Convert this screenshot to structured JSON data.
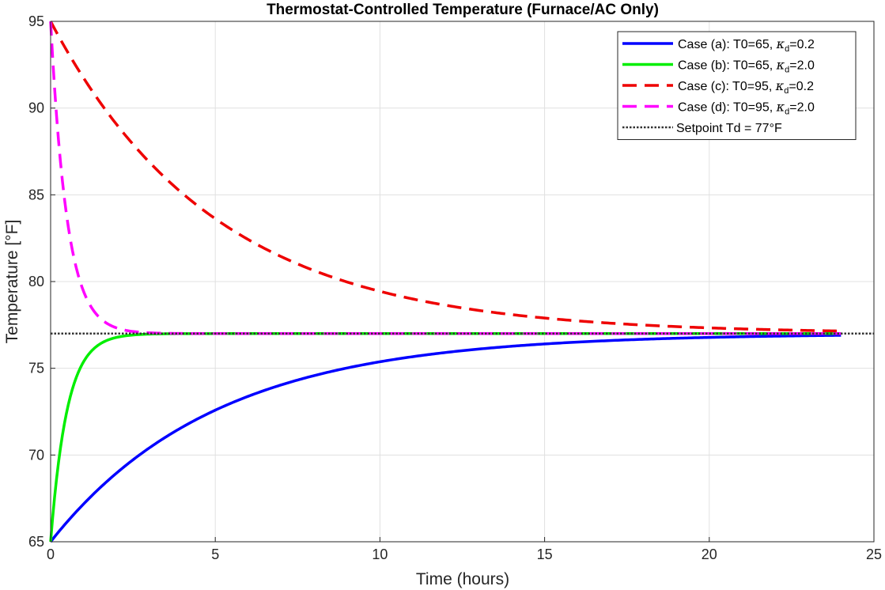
{
  "chart_data": {
    "type": "line",
    "title": "Thermostat-Controlled Temperature (Furnace/AC Only)",
    "xlabel": "Time (hours)",
    "ylabel": "Temperature [°F]",
    "xlim": [
      0,
      25
    ],
    "ylim": [
      65,
      95
    ],
    "xticks": [
      0,
      5,
      10,
      15,
      20,
      25
    ],
    "yticks": [
      65,
      70,
      75,
      80,
      85,
      90,
      95
    ],
    "grid": true,
    "legend_position": "top-right",
    "setpoint": 77,
    "t_end": 24,
    "series": [
      {
        "name": "Case  (a):  T0=65,  κd=0.2",
        "legend_prefix": "Case  (a):  T0=65,  ",
        "legend_kappa": "κ",
        "legend_sub": "d",
        "legend_suffix": "=0.2",
        "T0": 65,
        "kappa_d": 0.2,
        "color": "#0000ff",
        "dash": "solid",
        "x": [
          0,
          1,
          2,
          3,
          4,
          5,
          6,
          7,
          8,
          9,
          10,
          12,
          14,
          16,
          18,
          20,
          22,
          24
        ],
        "y": [
          65.0,
          67.18,
          68.96,
          70.41,
          71.61,
          72.58,
          73.39,
          74.04,
          74.58,
          75.02,
          75.38,
          75.91,
          76.27,
          76.51,
          76.67,
          76.78,
          76.85,
          76.9
        ]
      },
      {
        "name": "Case  (b):  T0=65,  κd=2.0",
        "legend_prefix": "Case  (b):  T0=65,  ",
        "legend_kappa": "κ",
        "legend_sub": "d",
        "legend_suffix": "=2.0",
        "T0": 65,
        "kappa_d": 2.0,
        "color": "#00ee00",
        "dash": "solid",
        "x": [
          0,
          0.1,
          0.2,
          0.3,
          0.5,
          0.75,
          1.0,
          1.5,
          2.0,
          2.5,
          3.0,
          4.0,
          6.0,
          10.0,
          16.0,
          24.0
        ],
        "y": [
          65.0,
          67.18,
          68.96,
          70.41,
          72.58,
          74.3,
          75.38,
          76.4,
          76.78,
          76.92,
          76.97,
          77.0,
          77.0,
          77.0,
          77.0,
          77.0
        ]
      },
      {
        "name": "Case  (c):  T0=95,  κd=0.2",
        "legend_prefix": "Case  (c):  T0=95,  ",
        "legend_kappa": "κ",
        "legend_sub": "d",
        "legend_suffix": "=0.2",
        "T0": 95,
        "kappa_d": 0.2,
        "color": "#ee0000",
        "dash": "dashed",
        "x": [
          0,
          1,
          2,
          3,
          4,
          5,
          6,
          7,
          8,
          9,
          10,
          12,
          14,
          16,
          18,
          20,
          22,
          24
        ],
        "y": [
          95.0,
          91.74,
          89.07,
          86.88,
          85.09,
          83.62,
          82.42,
          81.44,
          80.63,
          79.97,
          79.43,
          78.63,
          78.1,
          77.73,
          77.49,
          77.33,
          77.22,
          77.15
        ]
      },
      {
        "name": "Case  (d):  T0=95,  κd=2.0",
        "legend_prefix": "Case  (d):  T0=95,  ",
        "legend_kappa": "κ",
        "legend_sub": "d",
        "legend_suffix": "=2.0",
        "T0": 95,
        "kappa_d": 2.0,
        "color": "#ff00ff",
        "dash": "dashed",
        "x": [
          0,
          0.1,
          0.2,
          0.3,
          0.5,
          0.75,
          1.0,
          1.5,
          2.0,
          2.5,
          3.0,
          4.0,
          6.0,
          10.0,
          16.0,
          24.0
        ],
        "y": [
          95.0,
          91.74,
          89.07,
          86.88,
          83.62,
          81.04,
          79.43,
          77.9,
          77.33,
          77.12,
          77.04,
          77.0,
          77.0,
          77.0,
          77.0,
          77.0
        ]
      },
      {
        "name": "Setpoint Td = 77°F",
        "legend_prefix": "Setpoint Td = 77°F",
        "color": "#333333",
        "dash": "dotted",
        "x": [
          0,
          25
        ],
        "y": [
          77,
          77
        ]
      }
    ]
  }
}
